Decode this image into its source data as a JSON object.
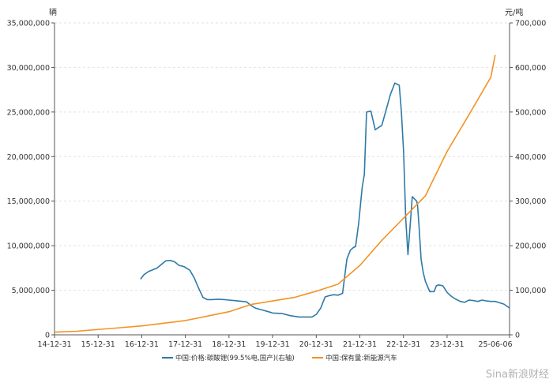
{
  "chart_data": {
    "type": "line",
    "left_unit": "辆",
    "right_unit": "元/吨",
    "left_axis": {
      "min": 0,
      "max": 35000000,
      "ticks": [
        0,
        5000000,
        10000000,
        15000000,
        20000000,
        25000000,
        30000000,
        35000000
      ],
      "tick_labels": [
        "0",
        "5,000,000",
        "10,000,000",
        "15,000,000",
        "20,000,000",
        "25,000,000",
        "30,000,000",
        "35,000,000"
      ]
    },
    "right_axis": {
      "min": 0,
      "max": 700000,
      "ticks": [
        0,
        100000,
        200000,
        300000,
        400000,
        500000,
        600000,
        700000
      ],
      "tick_labels": [
        "0",
        "100,000",
        "200,000",
        "300,000",
        "400,000",
        "500,000",
        "600,000",
        "700,000"
      ]
    },
    "x_axis": {
      "min": 2014.9973,
      "max": 2025.4288,
      "ticks": [
        2014.9973,
        2015.9973,
        2016.9973,
        2017.9973,
        2018.9973,
        2019.9973,
        2020.9973,
        2021.9973,
        2022.9973,
        2023.9973,
        2025.4288
      ],
      "tick_labels": [
        "14-12-31",
        "15-12-31",
        "16-12-31",
        "17-12-31",
        "18-12-31",
        "19-12-31",
        "20-12-31",
        "21-12-31",
        "22-12-31",
        "23-12-31",
        "25-06-06"
      ]
    },
    "grid": true,
    "legend_position": "bottom",
    "series": [
      {
        "name": "中国:价格:碳酸锂(99.5%电,国产)(右轴)",
        "axis": "right",
        "color": "#2f7aa6",
        "x": [
          2016.97,
          2017.05,
          2017.15,
          2017.25,
          2017.35,
          2017.45,
          2017.55,
          2017.65,
          2017.75,
          2017.85,
          2017.97,
          2018.1,
          2018.2,
          2018.3,
          2018.4,
          2018.5,
          2018.6,
          2018.75,
          2018.9,
          2019.0,
          2019.2,
          2019.4,
          2019.5,
          2019.6,
          2019.75,
          2019.9,
          2020.0,
          2020.2,
          2020.4,
          2020.6,
          2020.75,
          2020.9,
          2021.0,
          2021.1,
          2021.2,
          2021.3,
          2021.4,
          2021.5,
          2021.6,
          2021.7,
          2021.78,
          2021.85,
          2021.9,
          2021.97,
          2022.05,
          2022.1,
          2022.15,
          2022.25,
          2022.35,
          2022.42,
          2022.5,
          2022.6,
          2022.7,
          2022.8,
          2022.9,
          2022.95,
          2023.0,
          2023.05,
          2023.1,
          2023.2,
          2023.3,
          2023.32,
          2023.35,
          2023.4,
          2023.45,
          2023.5,
          2023.6,
          2023.7,
          2023.75,
          2023.8,
          2023.9,
          2024.0,
          2024.1,
          2024.2,
          2024.3,
          2024.4,
          2024.5,
          2024.6,
          2024.7,
          2024.8,
          2024.9,
          2025.0,
          2025.1,
          2025.2,
          2025.3,
          2025.43
        ],
        "y": [
          125000,
          135000,
          142000,
          146000,
          150000,
          158000,
          166000,
          167000,
          164000,
          156000,
          153000,
          145000,
          128000,
          105000,
          84000,
          79000,
          79000,
          80000,
          79000,
          78000,
          76000,
          74000,
          66000,
          60000,
          56000,
          52000,
          49000,
          48000,
          43000,
          40000,
          40000,
          40000,
          46000,
          60000,
          85000,
          88000,
          90000,
          89000,
          93000,
          170000,
          190000,
          196000,
          198000,
          250000,
          330000,
          360000,
          500000,
          502000,
          460000,
          465000,
          470000,
          505000,
          540000,
          565000,
          560000,
          500000,
          410000,
          260000,
          180000,
          310000,
          300000,
          290000,
          250000,
          170000,
          140000,
          120000,
          97000,
          97000,
          110000,
          112000,
          110000,
          95000,
          86000,
          80000,
          75000,
          73000,
          78000,
          77000,
          75000,
          78000,
          76000,
          75000,
          75000,
          72000,
          69000,
          60000
        ]
      },
      {
        "name": "中国:保有量:新能源汽车",
        "axis": "left",
        "color": "#f39323",
        "x": [
          2014.9973,
          2015.5,
          2016.0,
          2016.5,
          2017.0,
          2017.5,
          2018.0,
          2018.5,
          2019.0,
          2019.5,
          2020.0,
          2020.5,
          2021.0,
          2021.5,
          2022.0,
          2022.5,
          2023.0,
          2023.5,
          2024.0,
          2024.5,
          2025.0,
          2025.1
        ],
        "y": [
          300000,
          400000,
          600000,
          800000,
          1000000,
          1300000,
          1600000,
          2100000,
          2600000,
          3400000,
          3800000,
          4200000,
          4900000,
          5700000,
          7800000,
          10600000,
          13100000,
          15600000,
          20600000,
          24700000,
          28900000,
          31400000
        ]
      }
    ]
  },
  "watermark": {
    "text": "Sina新浪财经"
  }
}
